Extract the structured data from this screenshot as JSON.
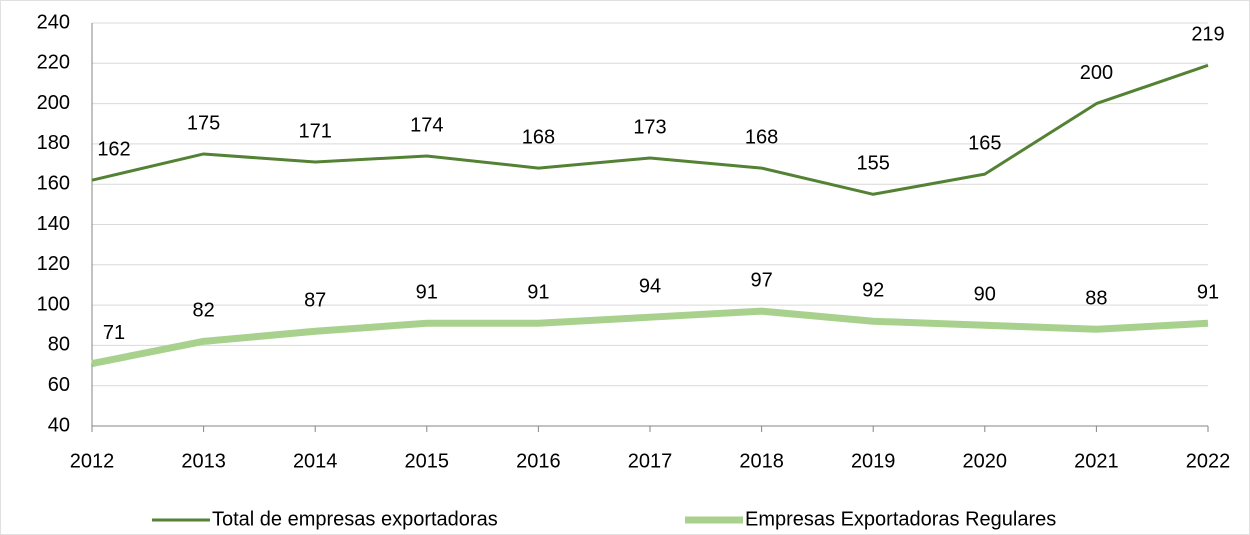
{
  "chart_data": {
    "type": "line",
    "categories": [
      "2012",
      "2013",
      "2014",
      "2015",
      "2016",
      "2017",
      "2018",
      "2019",
      "2020",
      "2021",
      "2022"
    ],
    "series": [
      {
        "name": "Total de empresas exportadoras",
        "color": "#548235",
        "values": [
          162,
          175,
          171,
          174,
          168,
          173,
          168,
          155,
          165,
          200,
          219
        ]
      },
      {
        "name": "Empresas Exportadoras Regulares",
        "color": "#a9d18e",
        "values": [
          71,
          82,
          87,
          91,
          91,
          94,
          97,
          92,
          90,
          88,
          91
        ]
      }
    ],
    "ylim": [
      40,
      240
    ],
    "yticks": [
      40,
      60,
      80,
      100,
      120,
      140,
      160,
      180,
      200,
      220,
      240
    ],
    "grid": true,
    "legend": "bottom"
  }
}
